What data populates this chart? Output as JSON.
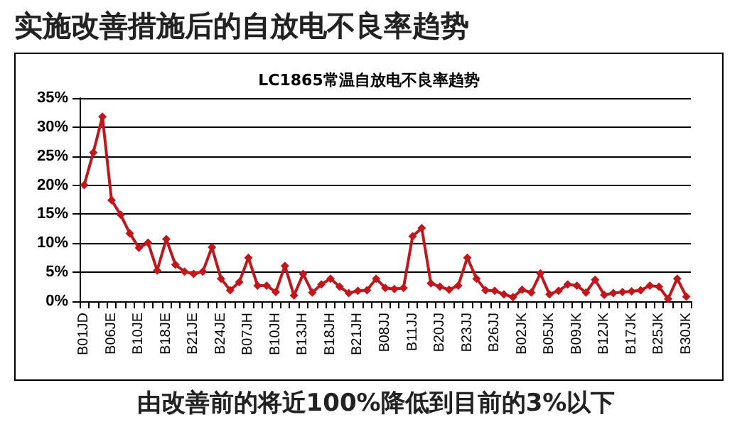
{
  "chart_data": {
    "type": "line",
    "title": "实施改善措施后的自放电不良率趋势",
    "subtitle": "LC1865常温自放电不良率趋势",
    "categories": [
      "B01JD",
      null,
      null,
      "B06JE",
      null,
      null,
      "B10JE",
      null,
      null,
      "B18JE",
      null,
      null,
      "B21JE",
      null,
      null,
      "B24JE",
      null,
      null,
      "B07JH",
      null,
      null,
      "B10JH",
      null,
      null,
      "B13JH",
      null,
      null,
      "B18JH",
      null,
      null,
      "B21JH",
      null,
      null,
      "B08JJ",
      null,
      null,
      "B11JJ",
      null,
      null,
      "B20JJ",
      null,
      null,
      "B23JJ",
      null,
      null,
      "B26JJ",
      null,
      null,
      "B02JK",
      null,
      null,
      "B05JK",
      null,
      null,
      "B09JK",
      null,
      null,
      "B12JK",
      null,
      null,
      "B17JK",
      null,
      null,
      "B25JK",
      null,
      null,
      "B30JK"
    ],
    "series": [
      {
        "color": "#c0161c",
        "values": [
          20,
          25.6,
          31.8,
          17.4,
          14.9,
          11.7,
          9.2,
          10.1,
          5.3,
          10.7,
          6.3,
          5.1,
          4.7,
          5.1,
          9.3,
          3.9,
          1.9,
          3.3,
          7.5,
          2.7,
          2.7,
          1.6,
          6.1,
          1.0,
          4.7,
          1.5,
          2.9,
          3.9,
          2.5,
          1.4,
          1.8,
          1.9,
          3.9,
          2.3,
          2.1,
          2.3,
          11.2,
          12.6,
          3.1,
          2.5,
          2.0,
          2.7,
          7.5,
          3.9,
          1.9,
          1.8,
          1.2,
          0.7,
          2.0,
          1.5,
          4.8,
          1.2,
          1.8,
          2.9,
          2.7,
          1.5,
          3.7,
          1.1,
          1.4,
          1.6,
          1.7,
          1.9,
          2.7,
          2.5,
          0.4,
          3.9,
          0.8
        ]
      }
    ],
    "ylim": [
      0,
      35
    ],
    "yticks": [
      {
        "value": 0,
        "label": "0%"
      },
      {
        "value": 5,
        "label": "5%"
      },
      {
        "value": 10,
        "label": "10%"
      },
      {
        "value": 15,
        "label": "15%"
      },
      {
        "value": 20,
        "label": "20%"
      },
      {
        "value": 25,
        "label": "25%"
      },
      {
        "value": 30,
        "label": "30%"
      },
      {
        "value": 35,
        "label": "35%"
      }
    ],
    "grid": "y",
    "marker": "diamond",
    "line_style": "solid",
    "annotations": [
      "由改善前的将近100%降低到目前的3%以下"
    ]
  }
}
